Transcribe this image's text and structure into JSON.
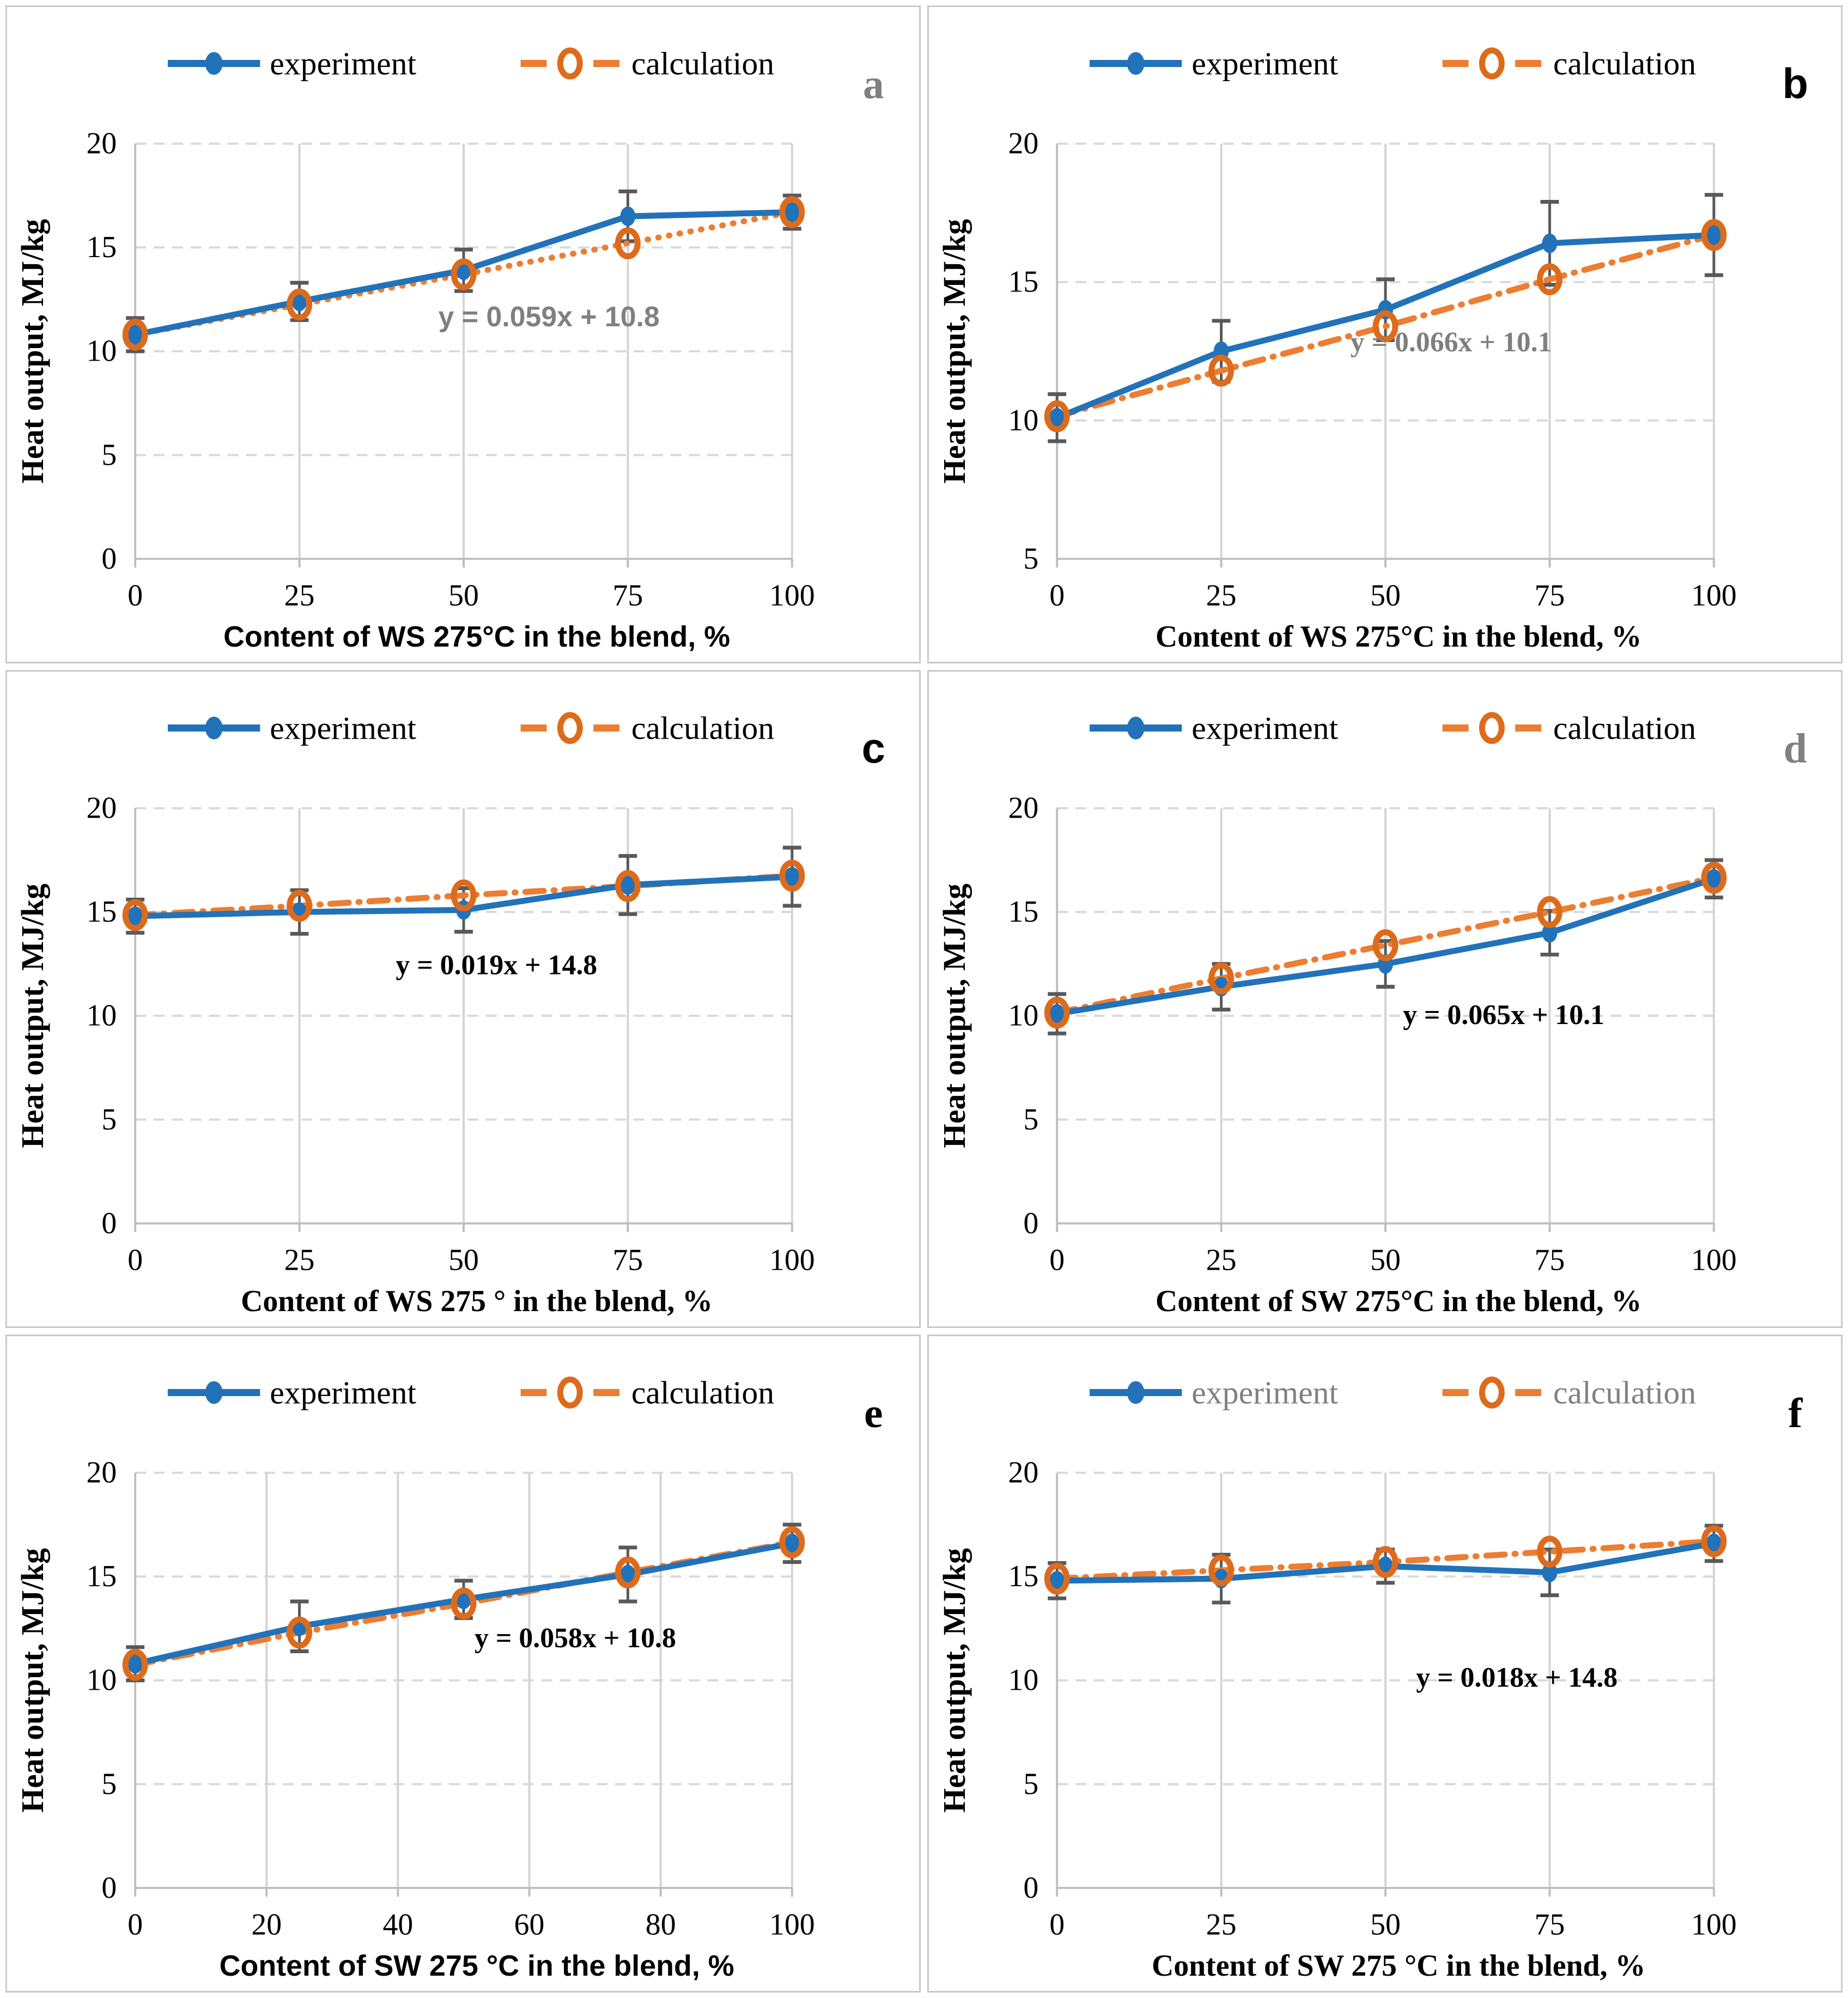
{
  "figure": {
    "description": "Six line charts comparing experimental and calculated heat output of fuel blends",
    "legend": {
      "experiment_label": "experiment",
      "calculation_label": "calculation"
    }
  },
  "colors": {
    "experiment_blue": "#2272B9",
    "calculation_orange": "#ED7D31",
    "calculation_ring": "#DD6B1C",
    "error_bar": "#595959",
    "grid_line": "#D9D9D9",
    "axis_line": "#BFBFBF",
    "gray_text": "#808080",
    "black_text": "#000000"
  },
  "chart_data": [
    {
      "id": "a",
      "letter": "a",
      "type": "line",
      "xlabel": "Content of WS 275°C in the blend, %",
      "ylabel": "Heat output,  MJ/kg",
      "x": [
        0,
        25,
        50,
        75,
        100
      ],
      "x_ticks": [
        0,
        25,
        50,
        75,
        100
      ],
      "ylim": [
        0,
        20
      ],
      "y_ticks": [
        0,
        5,
        10,
        15,
        20
      ],
      "series": [
        {
          "name": "experiment",
          "values": [
            10.8,
            12.4,
            13.9,
            16.5,
            16.7
          ],
          "errors": [
            0.8,
            0.9,
            1.0,
            1.2,
            0.8
          ]
        },
        {
          "name": "calculation",
          "values": [
            10.8,
            12.25,
            13.7,
            15.2,
            16.7
          ]
        }
      ],
      "equation": {
        "text": "y = 0.059x + 10.8",
        "color": "#808080",
        "fx": 0.63,
        "fy": 0.44,
        "family": "sans"
      },
      "style": {
        "letter_color": "#808080",
        "letter_family": "serif",
        "xlabel_family": "sans",
        "legend_text_color": "#000000",
        "calc_dash": "dot"
      }
    },
    {
      "id": "b",
      "letter": "b",
      "type": "line",
      "xlabel": "Content of WS 275°C  in the blend, %",
      "ylabel": "Heat output,  MJ/kg",
      "x": [
        0,
        25,
        50,
        75,
        100
      ],
      "x_ticks": [
        0,
        25,
        50,
        75,
        100
      ],
      "ylim": [
        5,
        20
      ],
      "y_ticks": [
        5,
        10,
        15,
        20
      ],
      "series": [
        {
          "name": "experiment",
          "values": [
            10.1,
            12.5,
            14.0,
            16.4,
            16.7
          ],
          "errors": [
            0.85,
            1.1,
            1.1,
            1.5,
            1.45
          ]
        },
        {
          "name": "calculation",
          "values": [
            10.15,
            11.8,
            13.4,
            15.1,
            16.7
          ]
        }
      ],
      "equation": {
        "text": "y = 0.066x + 10.1",
        "color": "#7F7F7F",
        "fx": 0.6,
        "fy": 0.5,
        "family": "serif"
      },
      "style": {
        "letter_color": "#000000",
        "letter_family": "sans",
        "xlabel_family": "serif",
        "legend_text_color": "#000000",
        "calc_dash": "dashdot"
      }
    },
    {
      "id": "c",
      "letter": "c",
      "type": "line",
      "xlabel": "Content of WS 275 ° in the blend, %",
      "ylabel": "Heat output,  MJ/kg",
      "x": [
        0,
        25,
        50,
        75,
        100
      ],
      "x_ticks": [
        0,
        25,
        50,
        75,
        100
      ],
      "ylim": [
        0,
        20
      ],
      "y_ticks": [
        0,
        5,
        10,
        15,
        20
      ],
      "series": [
        {
          "name": "experiment",
          "values": [
            14.8,
            15.0,
            15.1,
            16.3,
            16.7
          ],
          "errors": [
            0.8,
            1.05,
            1.05,
            1.4,
            1.4
          ]
        },
        {
          "name": "calculation",
          "values": [
            14.85,
            15.3,
            15.8,
            16.25,
            16.75
          ]
        }
      ],
      "equation": {
        "text": "y = 0.019x + 14.8",
        "color": "#000000",
        "fx": 0.55,
        "fy": 0.4,
        "family": "serif"
      },
      "style": {
        "letter_color": "#000000",
        "letter_family": "sans",
        "xlabel_family": "serif",
        "legend_text_color": "#000000",
        "calc_dash": "dashdot"
      }
    },
    {
      "id": "d",
      "letter": "d",
      "type": "line",
      "xlabel": "Content of SW 275°C in the blend, %",
      "ylabel": "Heat output,  MJ/kg",
      "x": [
        0,
        25,
        50,
        75,
        100
      ],
      "x_ticks": [
        0,
        25,
        50,
        75,
        100
      ],
      "ylim": [
        0,
        20
      ],
      "y_ticks": [
        0,
        5,
        10,
        15,
        20
      ],
      "series": [
        {
          "name": "experiment",
          "values": [
            10.1,
            11.4,
            12.5,
            14.0,
            16.6
          ],
          "errors": [
            0.95,
            1.1,
            1.1,
            1.05,
            0.9
          ]
        },
        {
          "name": "calculation",
          "values": [
            10.15,
            11.8,
            13.4,
            15.0,
            16.65
          ]
        }
      ],
      "equation": {
        "text": "y = 0.065x + 10.1",
        "color": "#000000",
        "fx": 0.68,
        "fy": 0.52,
        "family": "serif"
      },
      "style": {
        "letter_color": "#808080",
        "letter_family": "serif",
        "xlabel_family": "serif",
        "legend_text_color": "#000000",
        "calc_dash": "dashdot"
      }
    },
    {
      "id": "e",
      "letter": "e",
      "type": "line",
      "xlabel": "Content of SW 275 °C in the blend, %",
      "ylabel": "Heat output,  MJ/kg",
      "x": [
        0,
        25,
        50,
        75,
        100
      ],
      "x_ticks": [
        0,
        20,
        40,
        60,
        80,
        100
      ],
      "ylim": [
        0,
        20
      ],
      "y_ticks": [
        0,
        5,
        10,
        15,
        20
      ],
      "series": [
        {
          "name": "experiment",
          "values": [
            10.8,
            12.6,
            13.9,
            15.1,
            16.6
          ],
          "errors": [
            0.8,
            1.2,
            0.9,
            1.3,
            0.9
          ]
        },
        {
          "name": "calculation",
          "values": [
            10.75,
            12.3,
            13.7,
            15.2,
            16.65
          ]
        }
      ],
      "equation": {
        "text": "y = 0.058x + 10.8",
        "color": "#000000",
        "fx": 0.67,
        "fy": 0.42,
        "family": "serif"
      },
      "style": {
        "letter_color": "#000000",
        "letter_family": "serif",
        "xlabel_family": "sans",
        "legend_text_color": "#000000",
        "calc_dash": "dashdot"
      }
    },
    {
      "id": "f",
      "letter": "f",
      "type": "line",
      "xlabel": "Content of SW 275 °C  in the blend, %",
      "ylabel": "Heat output,  MJ/kg",
      "x": [
        0,
        25,
        50,
        75,
        100
      ],
      "x_ticks": [
        0,
        25,
        50,
        75,
        100
      ],
      "ylim": [
        0,
        20
      ],
      "y_ticks": [
        0,
        5,
        10,
        15,
        20
      ],
      "series": [
        {
          "name": "experiment",
          "values": [
            14.8,
            14.9,
            15.5,
            15.2,
            16.6
          ],
          "errors": [
            0.85,
            1.15,
            0.8,
            1.1,
            0.85
          ]
        },
        {
          "name": "calculation",
          "values": [
            14.9,
            15.3,
            15.7,
            16.2,
            16.7
          ]
        }
      ],
      "equation": {
        "text": "y = 0.018x + 14.8",
        "color": "#000000",
        "fx": 0.7,
        "fy": 0.515,
        "family": "serif"
      },
      "style": {
        "letter_color": "#000000",
        "letter_family": "serif",
        "xlabel_family": "serif",
        "legend_text_color": "#808080",
        "calc_dash": "dashdot"
      }
    }
  ]
}
